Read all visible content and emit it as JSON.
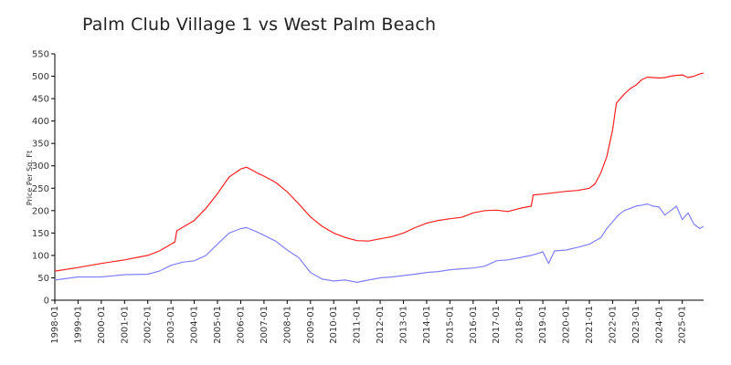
{
  "chart_data": {
    "type": "line",
    "title": "Palm Club Village 1 vs West Palm Beach",
    "ylabel": "Price Per Sq. Ft",
    "xlabel": "",
    "ylim": [
      0,
      550
    ],
    "yticks": [
      0,
      50,
      100,
      150,
      200,
      250,
      300,
      350,
      400,
      450,
      500,
      550
    ],
    "xlim": [
      "1998-01",
      "2025-12"
    ],
    "xtick_labels": [
      "1998-01",
      "1999-01",
      "2000-01",
      "2001-01",
      "2002-01",
      "2003-01",
      "2004-01",
      "2005-01",
      "2006-01",
      "2007-01",
      "2008-01",
      "2009-01",
      "2010-01",
      "2011-01",
      "2012-01",
      "2013-01",
      "2014-01",
      "2015-01",
      "2016-01",
      "2017-01",
      "2018-01",
      "2019-01",
      "2020-01",
      "2021-01",
      "2022-01",
      "2023-01",
      "2024-01",
      "2025-01"
    ],
    "grid": false,
    "series": [
      {
        "color": "#ff2020",
        "x": [
          "1998-01",
          "1999-01",
          "2000-01",
          "2001-01",
          "2002-01",
          "2002-07",
          "2003-01",
          "2003-03",
          "2003-04",
          "2004-01",
          "2004-07",
          "2005-01",
          "2005-07",
          "2006-01",
          "2006-04",
          "2006-07",
          "2006-10",
          "2007-01",
          "2007-07",
          "2008-01",
          "2008-07",
          "2009-01",
          "2009-07",
          "2010-01",
          "2010-07",
          "2011-01",
          "2011-07",
          "2012-01",
          "2012-07",
          "2013-01",
          "2013-07",
          "2014-01",
          "2014-07",
          "2015-01",
          "2015-07",
          "2016-01",
          "2016-07",
          "2017-01",
          "2017-07",
          "2018-01",
          "2018-07",
          "2018-08",
          "2019-01",
          "2019-07",
          "2020-01",
          "2020-07",
          "2021-01",
          "2021-04",
          "2021-07",
          "2021-10",
          "2022-01",
          "2022-03",
          "2022-04",
          "2022-07",
          "2022-10",
          "2023-01",
          "2023-04",
          "2023-07",
          "2023-10",
          "2024-01",
          "2024-04",
          "2024-07",
          "2024-10",
          "2025-01",
          "2025-04",
          "2025-07",
          "2025-10",
          "2025-12"
        ],
        "y": [
          65,
          73,
          82,
          90,
          100,
          110,
          125,
          130,
          155,
          178,
          205,
          238,
          275,
          293,
          297,
          290,
          283,
          277,
          263,
          242,
          215,
          186,
          165,
          150,
          140,
          133,
          132,
          137,
          142,
          150,
          162,
          172,
          178,
          182,
          185,
          195,
          200,
          201,
          198,
          205,
          210,
          235,
          237,
          240,
          243,
          245,
          250,
          260,
          285,
          320,
          380,
          440,
          445,
          460,
          472,
          480,
          492,
          498,
          497,
          496,
          497,
          500,
          502,
          503,
          497,
          500,
          505,
          507
        ]
      },
      {
        "color": "#8080ff",
        "x": [
          "1998-01",
          "1999-01",
          "2000-01",
          "2001-01",
          "2002-01",
          "2002-07",
          "2003-01",
          "2003-07",
          "2004-01",
          "2004-07",
          "2005-01",
          "2005-07",
          "2006-01",
          "2006-04",
          "2006-07",
          "2007-01",
          "2007-07",
          "2008-01",
          "2008-07",
          "2009-01",
          "2009-07",
          "2010-01",
          "2010-07",
          "2011-01",
          "2011-07",
          "2012-01",
          "2012-07",
          "2013-01",
          "2013-07",
          "2014-01",
          "2014-07",
          "2015-01",
          "2015-07",
          "2016-01",
          "2016-07",
          "2017-01",
          "2017-07",
          "2018-01",
          "2018-07",
          "2019-01",
          "2019-04",
          "2019-07",
          "2020-01",
          "2020-07",
          "2021-01",
          "2021-07",
          "2021-10",
          "2022-01",
          "2022-04",
          "2022-07",
          "2022-10",
          "2023-01",
          "2023-04",
          "2023-07",
          "2023-10",
          "2024-01",
          "2024-04",
          "2024-07",
          "2024-10",
          "2025-01",
          "2025-04",
          "2025-07",
          "2025-10",
          "2025-12"
        ],
        "y": [
          45,
          52,
          52,
          57,
          58,
          65,
          78,
          85,
          88,
          100,
          125,
          150,
          160,
          162,
          157,
          145,
          132,
          112,
          95,
          62,
          47,
          43,
          45,
          40,
          45,
          50,
          52,
          55,
          58,
          62,
          64,
          68,
          70,
          72,
          76,
          88,
          90,
          95,
          100,
          108,
          82,
          110,
          112,
          118,
          125,
          140,
          160,
          175,
          190,
          200,
          205,
          210,
          212,
          215,
          210,
          208,
          190,
          200,
          210,
          180,
          195,
          170,
          160,
          165
        ]
      }
    ]
  }
}
